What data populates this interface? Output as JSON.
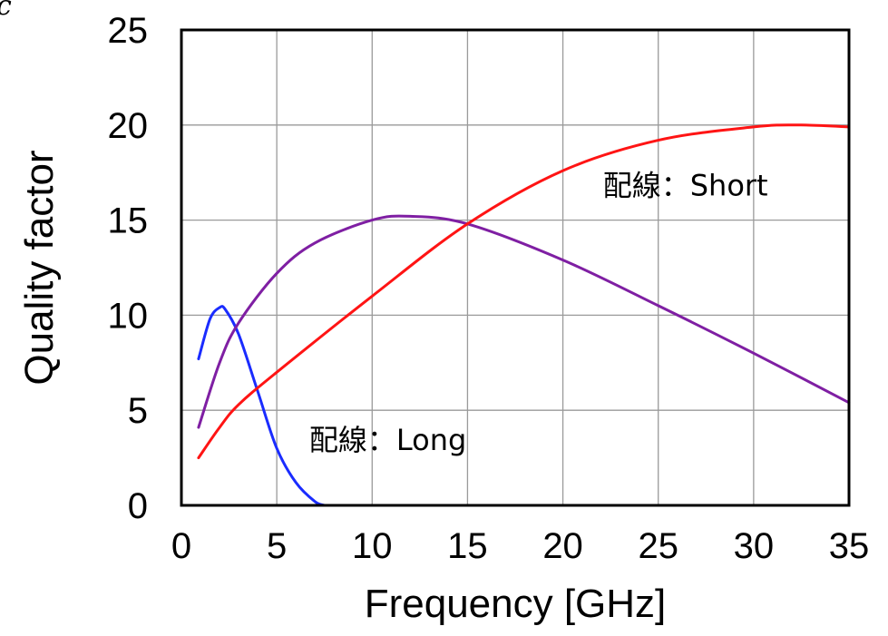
{
  "corner_mark": "c",
  "chart_data": {
    "type": "line",
    "xlabel": "Frequency [GHz]",
    "ylabel": "Quality factor",
    "xlim": [
      0,
      35
    ],
    "ylim": [
      0,
      25
    ],
    "xticks": [
      "0",
      "5",
      "10",
      "15",
      "20",
      "25",
      "30",
      "35"
    ],
    "yticks": [
      "0",
      "5",
      "10",
      "15",
      "20",
      "25"
    ],
    "grid": true,
    "series": [
      {
        "color": "#1a2cff",
        "x": [
          0.9,
          1.5,
          2.0,
          2.3,
          3.0,
          4.0,
          5.0,
          6.0,
          7.0,
          7.5
        ],
        "y": [
          7.7,
          9.8,
          10.4,
          10.3,
          9.0,
          6.0,
          3.0,
          1.2,
          0.2,
          0.0
        ]
      },
      {
        "color": "#7f1fa3",
        "x": [
          0.9,
          2.0,
          3.0,
          5.0,
          7.0,
          10.0,
          12.0,
          15.0,
          20.0,
          25.0,
          30.0,
          35.0
        ],
        "y": [
          4.1,
          7.5,
          9.6,
          12.2,
          13.8,
          15.0,
          15.2,
          14.8,
          12.9,
          10.5,
          8.0,
          5.4
        ]
      },
      {
        "color": "#ff1414",
        "x": [
          0.9,
          2.0,
          3.0,
          5.0,
          10.0,
          15.0,
          20.0,
          25.0,
          30.0,
          32.5,
          35.0
        ],
        "y": [
          2.5,
          4.1,
          5.3,
          7.0,
          11.0,
          14.8,
          17.6,
          19.2,
          19.9,
          20.0,
          19.9
        ]
      }
    ],
    "annotations": [
      {
        "text": "配線：Short",
        "x": 22.1,
        "y": 16.3
      },
      {
        "text": "配線：Long",
        "x": 6.7,
        "y": 2.9
      }
    ]
  }
}
